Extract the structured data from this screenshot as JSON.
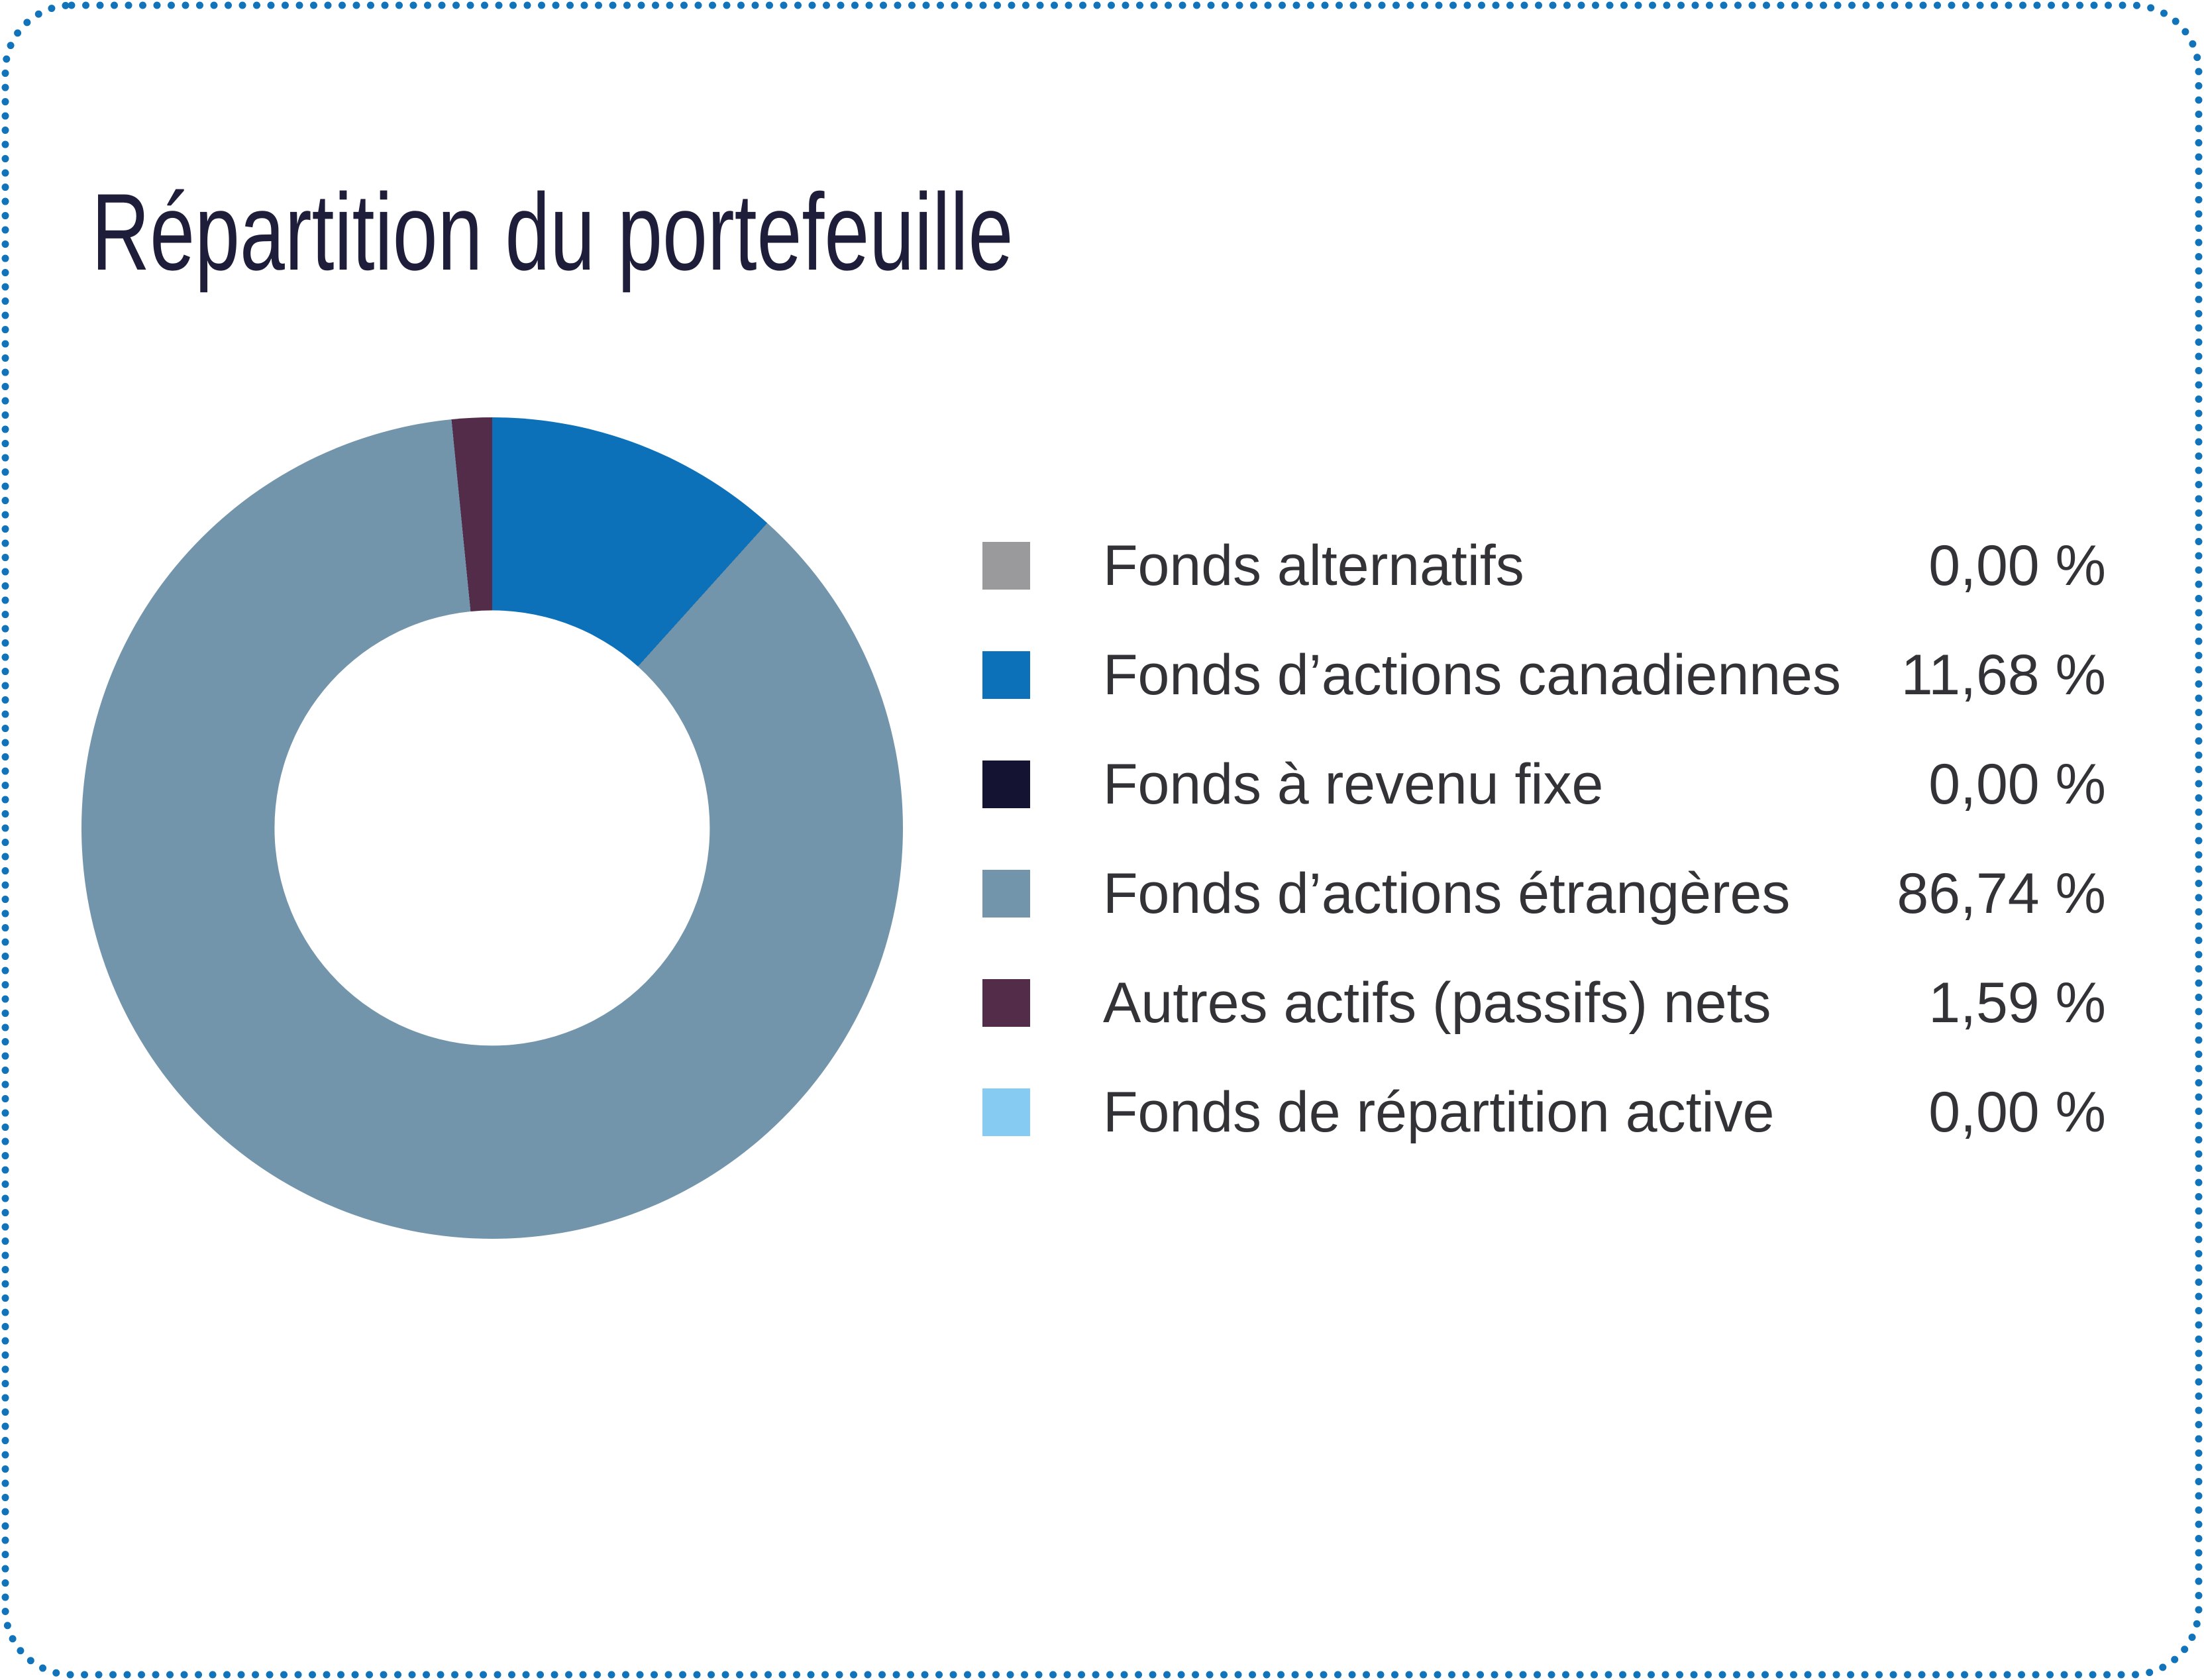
{
  "card": {
    "border_color": "#1173ba",
    "background": "#ffffff"
  },
  "header": {
    "title": "Répartition du portefeuille",
    "title_color": "#1e1d3a"
  },
  "legend": {
    "text_color": "#323237"
  },
  "chart_data": {
    "type": "pie",
    "subtype": "donut",
    "title": "Répartition du portefeuille",
    "legend_position": "right",
    "start_angle_deg": 0,
    "direction": "clockwise",
    "inner_radius_ratio": 0.53,
    "series": [
      {
        "name": "Fonds alternatifs",
        "value": 0.0,
        "display": "0,00 %",
        "color": "#9a9a9c"
      },
      {
        "name": "Fonds d’actions canadiennes",
        "value": 11.68,
        "display": "11,68 %",
        "color": "#0d71b9"
      },
      {
        "name": "Fonds à revenu fixe",
        "value": 0.0,
        "display": "0,00 %",
        "color": "#141432"
      },
      {
        "name": "Fonds d’actions étrangères",
        "value": 86.74,
        "display": "86,74 %",
        "color": "#7295ab"
      },
      {
        "name": "Autres actifs (passifs) nets",
        "value": 1.59,
        "display": "1,59 %",
        "color": "#532c4a"
      },
      {
        "name": "Fonds de répartition active",
        "value": 0.0,
        "display": "0,00 %",
        "color": "#85cbf2"
      }
    ]
  }
}
